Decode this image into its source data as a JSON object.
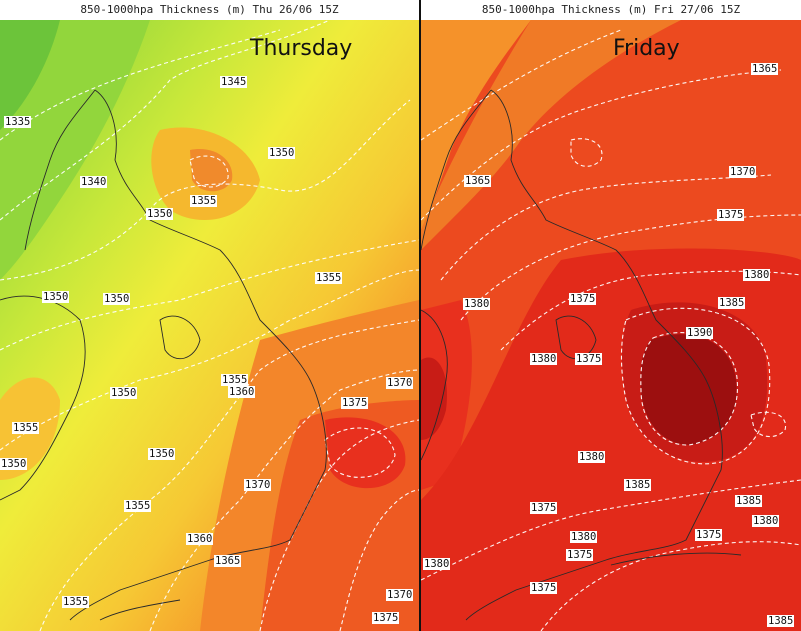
{
  "panels": [
    {
      "header": "850-1000hpa Thickness (m)  Thu 26/06 15Z",
      "day": "Thursday",
      "contour_labels": [
        "1345",
        "1335",
        "1350",
        "1340",
        "1350",
        "1355",
        "1350",
        "1350",
        "1355",
        "1355",
        "1360",
        "1350",
        "1370",
        "1375",
        "1355",
        "1350",
        "1360",
        "1355",
        "1365",
        "1370",
        "1370",
        "1375",
        "1355",
        "1350"
      ]
    },
    {
      "header": "850-1000hpa Thickness (m)  Fri 27/06 15Z",
      "day": "Friday",
      "contour_labels": [
        "1365",
        "1370",
        "1365",
        "1375",
        "1380",
        "1385",
        "1375",
        "1390",
        "1380",
        "1375",
        "1380",
        "1380",
        "1385",
        "1385",
        "1375",
        "1380",
        "1375",
        "1375",
        "1380",
        "1375",
        "1380",
        "1385"
      ]
    }
  ],
  "colors": {
    "green": "#8fd63a",
    "yellow": "#f2ee3a",
    "orange": "#f59a2a",
    "red": "#e8301e",
    "dark_red": "#9c0f0f"
  }
}
